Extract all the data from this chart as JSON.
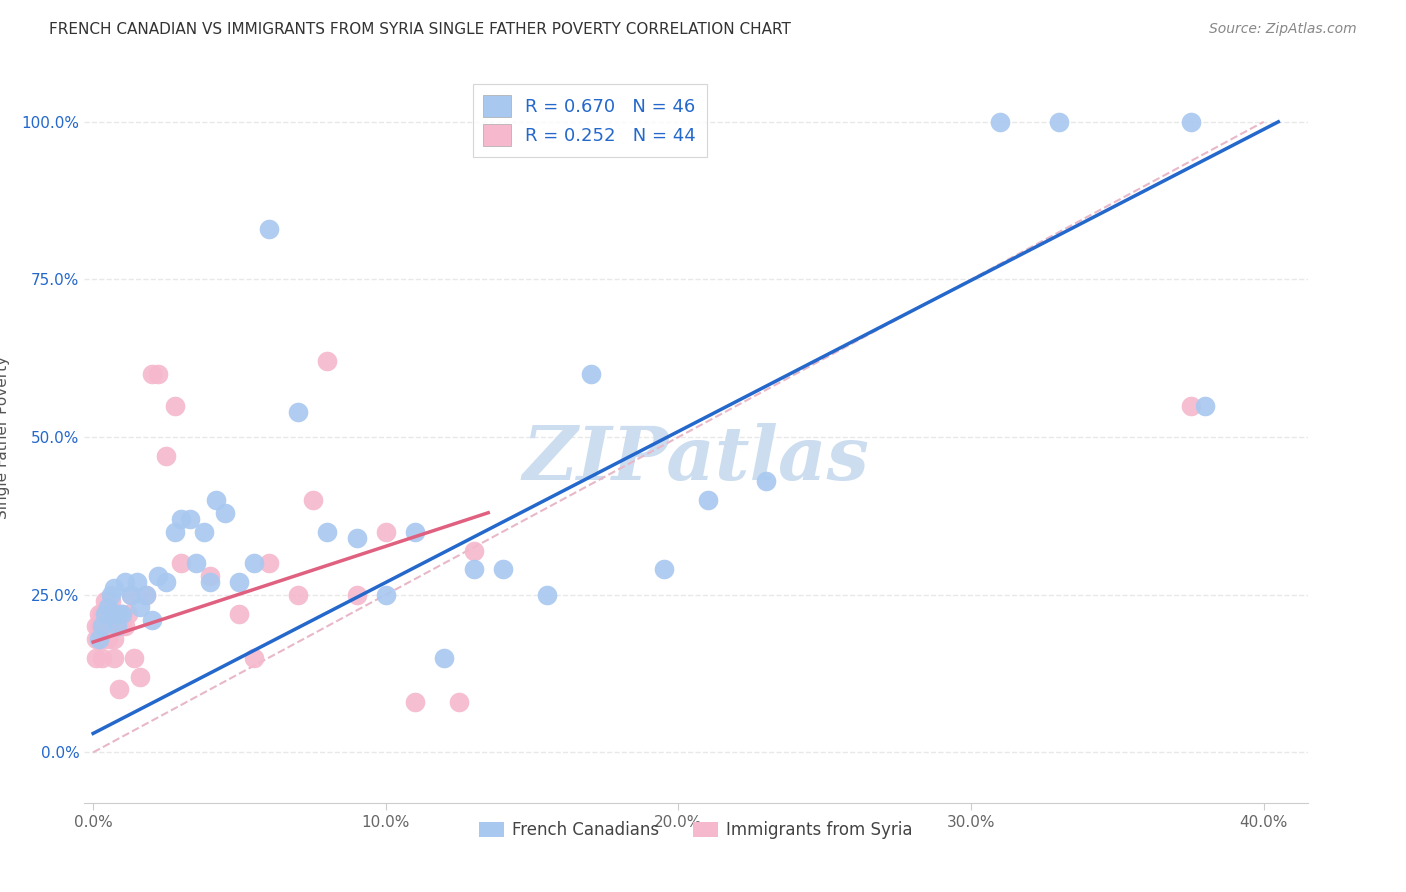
{
  "title": "FRENCH CANADIAN VS IMMIGRANTS FROM SYRIA SINGLE FATHER POVERTY CORRELATION CHART",
  "source": "Source: ZipAtlas.com",
  "xlabel_ticks": [
    "0.0%",
    "10.0%",
    "20.0%",
    "30.0%",
    "40.0%"
  ],
  "xlabel_vals": [
    0.0,
    0.1,
    0.2,
    0.3,
    0.4
  ],
  "ylabel_ticks": [
    "0.0%",
    "25.0%",
    "50.0%",
    "75.0%",
    "100.0%"
  ],
  "ylabel_vals": [
    0.0,
    0.25,
    0.5,
    0.75,
    1.0
  ],
  "xlim": [
    -0.003,
    0.415
  ],
  "ylim": [
    -0.08,
    1.08
  ],
  "R_blue": 0.67,
  "N_blue": 46,
  "R_pink": 0.252,
  "N_pink": 44,
  "blue_color": "#a8c8f0",
  "pink_color": "#f5b8cc",
  "blue_line_color": "#2468cc",
  "pink_line_color": "#e06080",
  "diag_line_color": "#e8b8c8",
  "legend_text_color": "#2468cc",
  "title_color": "#333333",
  "source_color": "#888888",
  "watermark": "ZIPatlas",
  "watermark_color": "#ccddf0",
  "ylabel": "Single Father Poverty",
  "grid_color": "#e8e8e8",
  "blue_line_x0": 0.0,
  "blue_line_y0": 0.03,
  "blue_line_x1": 0.405,
  "blue_line_y1": 1.0,
  "pink_line_x0": 0.0,
  "pink_line_y0": 0.175,
  "pink_line_x1": 0.135,
  "pink_line_y1": 0.38,
  "blue_points_x": [
    0.002,
    0.003,
    0.004,
    0.005,
    0.006,
    0.007,
    0.007,
    0.008,
    0.009,
    0.01,
    0.011,
    0.013,
    0.015,
    0.016,
    0.018,
    0.02,
    0.022,
    0.025,
    0.028,
    0.03,
    0.033,
    0.035,
    0.038,
    0.04,
    0.042,
    0.045,
    0.05,
    0.055,
    0.06,
    0.07,
    0.08,
    0.09,
    0.1,
    0.11,
    0.12,
    0.13,
    0.14,
    0.155,
    0.17,
    0.195,
    0.21,
    0.23,
    0.31,
    0.33,
    0.375,
    0.38
  ],
  "blue_points_y": [
    0.18,
    0.2,
    0.22,
    0.23,
    0.25,
    0.22,
    0.26,
    0.2,
    0.22,
    0.22,
    0.27,
    0.25,
    0.27,
    0.23,
    0.25,
    0.21,
    0.28,
    0.27,
    0.35,
    0.37,
    0.37,
    0.3,
    0.35,
    0.27,
    0.4,
    0.38,
    0.27,
    0.3,
    0.83,
    0.54,
    0.35,
    0.34,
    0.25,
    0.35,
    0.15,
    0.29,
    0.29,
    0.25,
    0.6,
    0.29,
    0.4,
    0.43,
    1.0,
    1.0,
    1.0,
    0.55
  ],
  "pink_points_x": [
    0.001,
    0.001,
    0.001,
    0.002,
    0.002,
    0.003,
    0.003,
    0.003,
    0.004,
    0.004,
    0.005,
    0.005,
    0.006,
    0.006,
    0.007,
    0.007,
    0.008,
    0.009,
    0.01,
    0.01,
    0.011,
    0.012,
    0.013,
    0.014,
    0.016,
    0.018,
    0.02,
    0.022,
    0.025,
    0.028,
    0.03,
    0.04,
    0.05,
    0.055,
    0.06,
    0.07,
    0.075,
    0.08,
    0.09,
    0.1,
    0.11,
    0.125,
    0.13,
    0.375
  ],
  "pink_points_y": [
    0.18,
    0.2,
    0.15,
    0.2,
    0.22,
    0.18,
    0.22,
    0.15,
    0.2,
    0.24,
    0.18,
    0.22,
    0.2,
    0.24,
    0.18,
    0.15,
    0.22,
    0.1,
    0.2,
    0.22,
    0.2,
    0.22,
    0.25,
    0.15,
    0.12,
    0.25,
    0.6,
    0.6,
    0.47,
    0.55,
    0.3,
    0.28,
    0.22,
    0.15,
    0.3,
    0.25,
    0.4,
    0.62,
    0.25,
    0.35,
    0.08,
    0.08,
    0.32,
    0.55
  ]
}
